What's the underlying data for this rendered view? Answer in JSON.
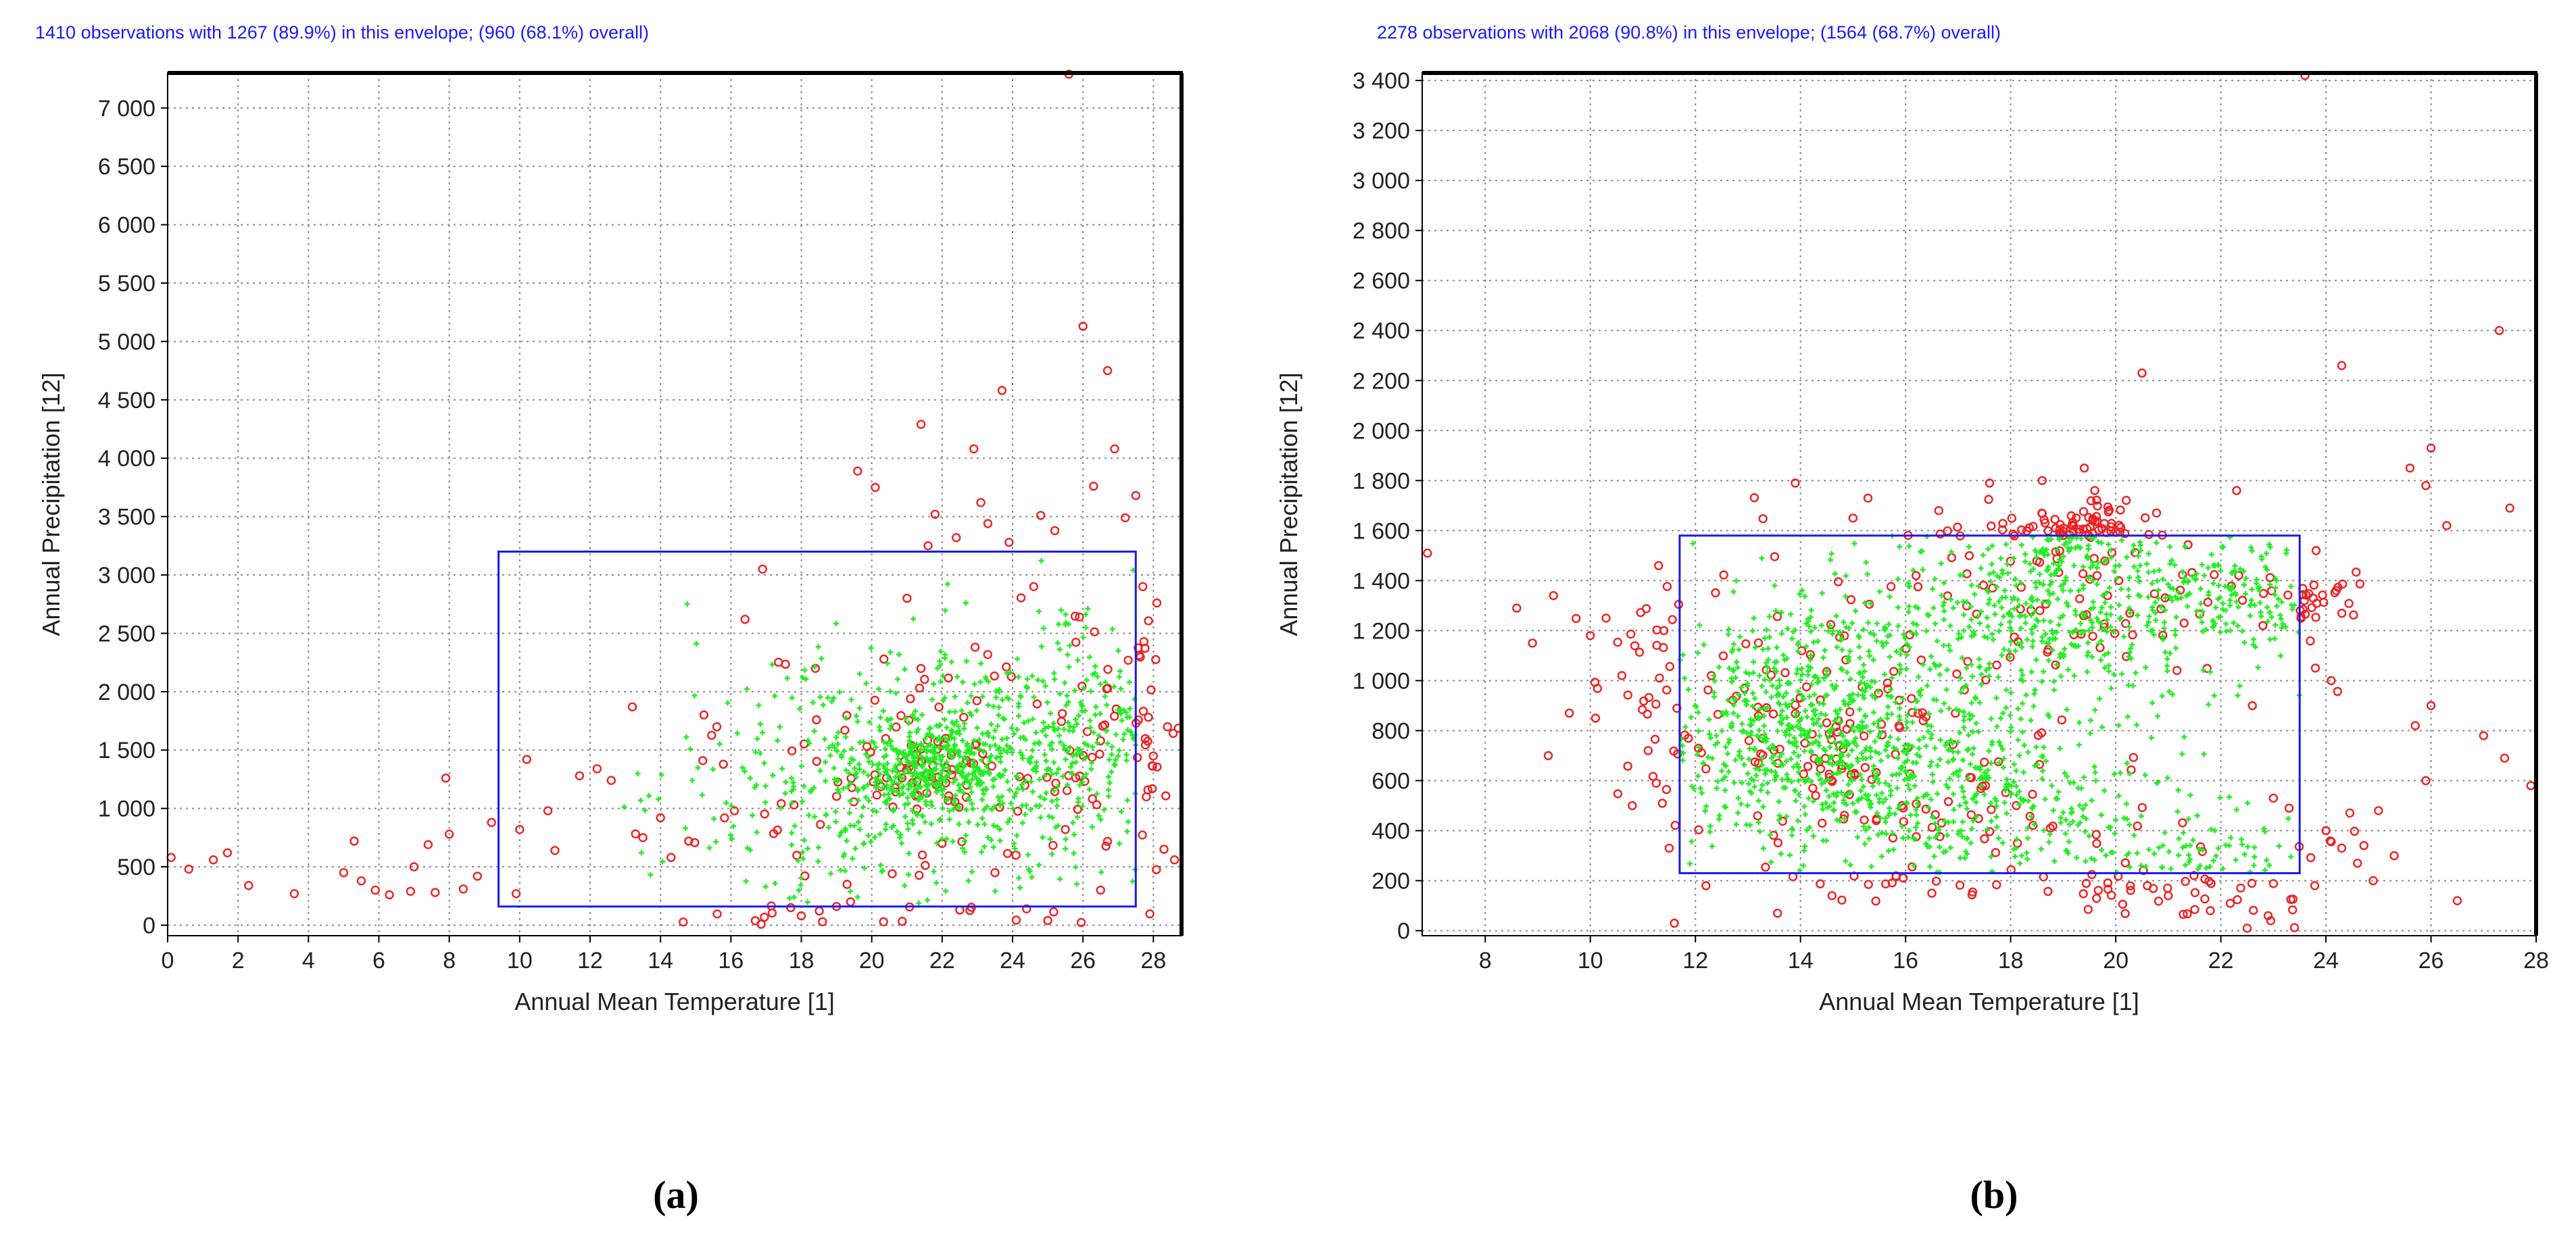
{
  "figure": {
    "labels": [
      "(a)",
      "(b)"
    ]
  },
  "chart_data": [
    {
      "type": "scatter",
      "panel": "a",
      "title": "1410 observations with 1267 (89.9%) in this envelope; (960 (68.1%) overall)",
      "xlabel": "Annual Mean Temperature [1]",
      "ylabel": "Annual Precipitation [12]",
      "xlim": [
        0,
        28.8
      ],
      "ylim": [
        -90,
        7300
      ],
      "xticks": [
        0,
        2,
        4,
        6,
        8,
        10,
        12,
        14,
        16,
        18,
        20,
        22,
        24,
        26,
        28
      ],
      "xtick_labels": [
        "0",
        "2",
        "4",
        "6",
        "8",
        "10",
        "12",
        "14",
        "16",
        "18",
        "20",
        "22",
        "24",
        "26",
        "28"
      ],
      "yticks": [
        0,
        500,
        1000,
        1500,
        2000,
        2500,
        3000,
        3500,
        4000,
        4500,
        5000,
        5500,
        6000,
        6500,
        7000
      ],
      "ytick_labels": [
        "0",
        "500",
        "1 000",
        "1 500",
        "2 000",
        "2 500",
        "3 000",
        "3 500",
        "4 000",
        "4 500",
        "5 000",
        "5 500",
        "6 000",
        "6 500",
        "7 000"
      ],
      "grid": true,
      "envelope": {
        "x_min": 9.4,
        "x_max": 27.5,
        "y_min": 160,
        "y_max": 3200
      },
      "colors": {
        "inside": "#22ee22",
        "outside": "#ee2222",
        "envelope": "#1a1aee",
        "title": "#1a1aff"
      },
      "clusters": [
        {
          "cx": 21.5,
          "cy": 1350,
          "sx": 1.2,
          "sy": 200,
          "n": 420
        },
        {
          "cx": 23.8,
          "cy": 1400,
          "sx": 1.8,
          "sy": 550,
          "n": 320
        },
        {
          "cx": 20.0,
          "cy": 1150,
          "sx": 2.5,
          "sy": 650,
          "n": 240
        },
        {
          "cx": 26.3,
          "cy": 1750,
          "sx": 1.0,
          "sy": 550,
          "n": 180
        },
        {
          "cx": 17.0,
          "cy": 1100,
          "sx": 2.0,
          "sy": 500,
          "n": 90
        }
      ],
      "outliers": [
        [
          0.1,
          580
        ],
        [
          0.6,
          480
        ],
        [
          1.3,
          560
        ],
        [
          1.7,
          620
        ],
        [
          2.3,
          340
        ],
        [
          3.6,
          270
        ],
        [
          5.0,
          450
        ],
        [
          5.3,
          720
        ],
        [
          5.5,
          380
        ],
        [
          5.9,
          300
        ],
        [
          6.3,
          260
        ],
        [
          6.9,
          290
        ],
        [
          7.0,
          500
        ],
        [
          7.4,
          690
        ],
        [
          7.6,
          280
        ],
        [
          7.9,
          1260
        ],
        [
          8.0,
          780
        ],
        [
          8.4,
          310
        ],
        [
          8.8,
          420
        ],
        [
          9.2,
          880
        ],
        [
          9.9,
          270
        ],
        [
          10.0,
          820
        ],
        [
          10.2,
          1420
        ],
        [
          10.8,
          980
        ],
        [
          11.0,
          640
        ],
        [
          11.7,
          1280
        ],
        [
          12.2,
          1340
        ],
        [
          12.6,
          1240
        ],
        [
          13.2,
          1870
        ],
        [
          13.5,
          750
        ],
        [
          14.0,
          920
        ],
        [
          14.3,
          580
        ],
        [
          14.8,
          720
        ],
        [
          15.2,
          1410
        ],
        [
          15.6,
          1700
        ],
        [
          16.1,
          980
        ],
        [
          16.4,
          2620
        ],
        [
          16.9,
          3050
        ],
        [
          17.7,
          150
        ],
        [
          18.0,
          80
        ],
        [
          18.4,
          2200
        ],
        [
          19.0,
          160
        ],
        [
          19.4,
          200
        ],
        [
          19.6,
          3890
        ],
        [
          20.1,
          3750
        ],
        [
          21.4,
          4290
        ],
        [
          21.6,
          3250
        ],
        [
          21.8,
          3520
        ],
        [
          22.1,
          1600
        ],
        [
          22.4,
          3320
        ],
        [
          22.5,
          130
        ],
        [
          22.9,
          4080
        ],
        [
          23.1,
          3620
        ],
        [
          23.3,
          3440
        ],
        [
          23.7,
          4580
        ],
        [
          23.9,
          3280
        ],
        [
          24.1,
          600
        ],
        [
          24.4,
          140
        ],
        [
          24.8,
          3510
        ],
        [
          25.0,
          40
        ],
        [
          25.2,
          3380
        ],
        [
          25.6,
          7290
        ],
        [
          25.9,
          2640
        ],
        [
          26.0,
          5130
        ],
        [
          26.3,
          3760
        ],
        [
          26.7,
          4750
        ],
        [
          26.9,
          4080
        ],
        [
          27.2,
          3490
        ],
        [
          27.5,
          3680
        ],
        [
          27.7,
          2900
        ],
        [
          28.0,
          1450
        ],
        [
          28.1,
          2760
        ],
        [
          28.3,
          650
        ],
        [
          28.6,
          560
        ],
        [
          18.6,
          30
        ],
        [
          19.3,
          350
        ],
        [
          24.6,
          2900
        ],
        [
          21.0,
          2800
        ],
        [
          22.0,
          700
        ],
        [
          23.5,
          450
        ],
        [
          25.5,
          820
        ],
        [
          27.8,
          1100
        ],
        [
          26.5,
          300
        ],
        [
          28.4,
          1700
        ]
      ]
    },
    {
      "type": "scatter",
      "panel": "b",
      "title": "2278 observations with 2068 (90.8%) in this envelope; (1564 (68.7%) overall)",
      "xlabel": "Annual Mean Temperature [1]",
      "ylabel": "Annual Precipitation [12]",
      "xlim": [
        6.8,
        28
      ],
      "ylim": [
        -20,
        3430
      ],
      "xticks": [
        8,
        10,
        12,
        14,
        16,
        18,
        20,
        22,
        24,
        26,
        28
      ],
      "xtick_labels": [
        "8",
        "10",
        "12",
        "14",
        "16",
        "18",
        "20",
        "22",
        "24",
        "26",
        "28"
      ],
      "yticks": [
        0,
        200,
        400,
        600,
        800,
        1000,
        1200,
        1400,
        1600,
        1800,
        2000,
        2200,
        2400,
        2600,
        2800,
        3000,
        3200,
        3400
      ],
      "ytick_labels": [
        "0",
        "200",
        "400",
        "600",
        "800",
        "1 000",
        "1 200",
        "1 400",
        "1 600",
        "1 800",
        "2 000",
        "2 200",
        "2 400",
        "2 600",
        "2 800",
        "3 000",
        "3 200",
        "3 400"
      ],
      "grid": true,
      "envelope": {
        "x_min": 11.7,
        "x_max": 23.5,
        "y_min": 230,
        "y_max": 1580
      },
      "colors": {
        "inside": "#22ee22",
        "outside": "#ee2222",
        "envelope": "#1a1aee",
        "title": "#1a1aff"
      },
      "clusters": [
        {
          "cx": 14.0,
          "cy": 800,
          "sx": 1.3,
          "sy": 220,
          "n": 600
        },
        {
          "cx": 17.0,
          "cy": 550,
          "sx": 1.9,
          "sy": 180,
          "n": 520
        },
        {
          "cx": 18.8,
          "cy": 1250,
          "sx": 1.7,
          "sy": 170,
          "n": 460
        },
        {
          "cx": 19.3,
          "cy": 1550,
          "sx": 0.6,
          "sy": 70,
          "n": 140
        },
        {
          "cx": 22.5,
          "cy": 1350,
          "sx": 0.9,
          "sy": 100,
          "n": 170
        },
        {
          "cx": 21.5,
          "cy": 250,
          "sx": 1.2,
          "sy": 110,
          "n": 110
        },
        {
          "cx": 15.5,
          "cy": 1050,
          "sx": 2.4,
          "sy": 260,
          "n": 270
        }
      ],
      "outliers": [
        [
          6.9,
          1510
        ],
        [
          8.6,
          1290
        ],
        [
          8.9,
          1150
        ],
        [
          9.2,
          700
        ],
        [
          9.3,
          1340
        ],
        [
          9.6,
          870
        ],
        [
          10.0,
          1180
        ],
        [
          10.1,
          850
        ],
        [
          10.3,
          1250
        ],
        [
          10.6,
          1020
        ],
        [
          10.8,
          500
        ],
        [
          11.1,
          720
        ],
        [
          11.4,
          1200
        ],
        [
          11.6,
          30
        ],
        [
          11.3,
          1460
        ],
        [
          13.9,
          1790
        ],
        [
          15.0,
          1650
        ],
        [
          16.2,
          1420
        ],
        [
          17.6,
          1790
        ],
        [
          18.6,
          1800
        ],
        [
          19.4,
          1850
        ],
        [
          19.6,
          1760
        ],
        [
          20.5,
          2230
        ],
        [
          22.3,
          1760
        ],
        [
          23.6,
          3420
        ],
        [
          24.3,
          2260
        ],
        [
          25.6,
          1850
        ],
        [
          25.9,
          1780
        ],
        [
          26.0,
          1930
        ],
        [
          26.3,
          1620
        ],
        [
          26.5,
          120
        ],
        [
          27.0,
          780
        ],
        [
          27.3,
          2400
        ],
        [
          27.4,
          690
        ],
        [
          27.5,
          1690
        ],
        [
          27.9,
          580
        ],
        [
          24.0,
          400
        ],
        [
          24.3,
          330
        ],
        [
          24.6,
          270
        ],
        [
          25.0,
          480
        ],
        [
          25.3,
          300
        ],
        [
          25.7,
          820
        ],
        [
          26.0,
          900
        ],
        [
          25.9,
          600
        ],
        [
          24.9,
          200
        ],
        [
          23.8,
          1050
        ],
        [
          24.1,
          1000
        ],
        [
          22.9,
          60
        ],
        [
          22.5,
          10
        ],
        [
          21.8,
          80
        ],
        [
          21.0,
          140
        ],
        [
          20.6,
          180
        ],
        [
          16.5,
          150
        ],
        [
          14.6,
          140
        ],
        [
          12.2,
          180
        ],
        [
          11.5,
          330
        ],
        [
          23.3,
          490
        ],
        [
          23.0,
          530
        ],
        [
          22.8,
          1220
        ],
        [
          22.6,
          900
        ]
      ]
    }
  ]
}
